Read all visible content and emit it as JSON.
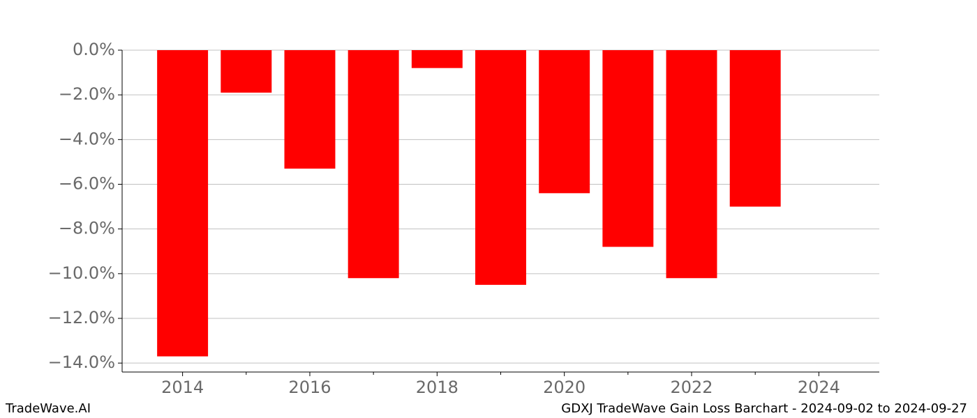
{
  "chart_data": {
    "type": "bar",
    "title": "GDXJ TradeWave Gain Loss Barchart - 2024-09-02 to 2024-09-27",
    "watermark": "TradeWave.AI",
    "x": [
      2014,
      2015,
      2016,
      2017,
      2018,
      2019,
      2020,
      2021,
      2022,
      2023
    ],
    "values": [
      -13.7,
      -1.9,
      -5.3,
      -10.2,
      -0.8,
      -10.5,
      -6.4,
      -8.8,
      -10.2,
      -7.0
    ],
    "color": "#ff0000",
    "xlim": [
      2013.05,
      2024.95
    ],
    "xticks": [
      2014,
      2016,
      2018,
      2020,
      2022,
      2024
    ],
    "xminor_ticks": [
      2015,
      2017,
      2019,
      2021,
      2023
    ],
    "ylim": [
      -14.4,
      0
    ],
    "yticks": [
      {
        "value": 0,
        "label": "0.0%"
      },
      {
        "value": -2,
        "label": "−2.0%"
      },
      {
        "value": -4,
        "label": "−4.0%"
      },
      {
        "value": -6,
        "label": "−6.0%"
      },
      {
        "value": -8,
        "label": "−8.0%"
      },
      {
        "value": -10,
        "label": "−10.0%"
      },
      {
        "value": -12,
        "label": "−12.0%"
      },
      {
        "value": -14,
        "label": "−14.0%"
      }
    ],
    "grid": true
  }
}
